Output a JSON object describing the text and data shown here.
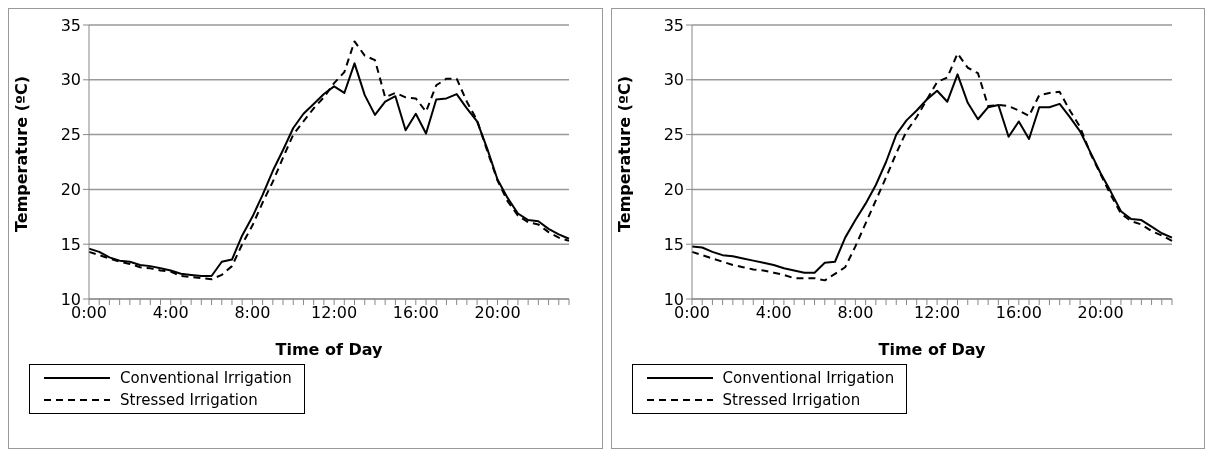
{
  "chart_data": [
    {
      "type": "line",
      "xlabel": "Time of Day",
      "ylabel": "Temperature (ºC)",
      "categories": [
        "0:00",
        null,
        null,
        null,
        null,
        null,
        null,
        null,
        "4:00",
        null,
        null,
        null,
        null,
        null,
        null,
        null,
        "8:00",
        null,
        null,
        null,
        null,
        null,
        null,
        null,
        "12:00",
        null,
        null,
        null,
        null,
        null,
        null,
        null,
        "16:00",
        null,
        null,
        null,
        null,
        null,
        null,
        null,
        "20:00",
        null,
        null,
        null,
        null,
        null,
        null,
        null
      ],
      "ylim": [
        10,
        35
      ],
      "yticks": [
        10,
        15,
        20,
        25,
        30,
        35
      ],
      "grid": "y",
      "legend": "bottom left",
      "series": [
        {
          "name": "Conventional Irrigation",
          "color": "#000000",
          "line_style": "solid",
          "values": [
            14.6,
            14.3,
            13.8,
            13.5,
            13.4,
            13.1,
            13.0,
            12.8,
            12.6,
            12.3,
            12.2,
            12.1,
            12.1,
            13.4,
            13.6,
            15.8,
            17.5,
            19.5,
            21.7,
            23.6,
            25.6,
            26.9,
            27.8,
            28.7,
            29.4,
            28.8,
            31.5,
            28.6,
            26.8,
            28.0,
            28.5,
            25.4,
            26.9,
            25.1,
            28.2,
            28.3,
            28.7,
            27.4,
            26.2,
            23.7,
            20.9,
            19.2,
            17.8,
            17.2,
            17.1,
            16.4,
            15.9,
            15.5
          ]
        },
        {
          "name": "Stressed Irrigation",
          "color": "#000000",
          "line_style": "dashed",
          "values": [
            14.3,
            14.0,
            13.7,
            13.4,
            13.2,
            12.9,
            12.8,
            12.6,
            12.5,
            12.1,
            12.0,
            11.9,
            11.8,
            12.2,
            13.0,
            15.0,
            16.7,
            18.8,
            20.7,
            22.9,
            25.0,
            26.2,
            27.4,
            28.4,
            29.7,
            30.7,
            33.5,
            32.2,
            31.8,
            28.4,
            28.8,
            28.4,
            28.3,
            27.1,
            29.5,
            30.1,
            30.1,
            28.0,
            26.3,
            23.5,
            20.8,
            18.9,
            17.6,
            17.0,
            16.8,
            16.1,
            15.6,
            15.3
          ]
        }
      ]
    },
    {
      "type": "line",
      "xlabel": "Time of Day",
      "ylabel": "Temperature (ºC)",
      "categories": [
        "0:00",
        null,
        null,
        null,
        null,
        null,
        null,
        null,
        "4:00",
        null,
        null,
        null,
        null,
        null,
        null,
        null,
        "8:00",
        null,
        null,
        null,
        null,
        null,
        null,
        null,
        "12:00",
        null,
        null,
        null,
        null,
        null,
        null,
        null,
        "16:00",
        null,
        null,
        null,
        null,
        null,
        null,
        null,
        "20:00",
        null,
        null,
        null,
        null,
        null,
        null,
        null
      ],
      "ylim": [
        10,
        35
      ],
      "yticks": [
        10,
        15,
        20,
        25,
        30,
        35
      ],
      "grid": "y",
      "legend": "bottom left",
      "series": [
        {
          "name": "Conventional Irrigation",
          "color": "#000000",
          "line_style": "solid",
          "values": [
            14.8,
            14.7,
            14.3,
            14.0,
            13.9,
            13.7,
            13.5,
            13.3,
            13.1,
            12.8,
            12.6,
            12.4,
            12.4,
            13.3,
            13.4,
            15.6,
            17.2,
            18.7,
            20.4,
            22.5,
            25.0,
            26.3,
            27.2,
            28.2,
            29.0,
            28.0,
            30.5,
            27.9,
            26.4,
            27.5,
            27.7,
            24.8,
            26.2,
            24.6,
            27.5,
            27.5,
            27.8,
            26.6,
            25.3,
            23.4,
            21.5,
            19.8,
            18.0,
            17.3,
            17.2,
            16.6,
            16.0,
            15.6
          ]
        },
        {
          "name": "Stressed Irrigation",
          "color": "#000000",
          "line_style": "dashed",
          "values": [
            14.3,
            14.0,
            13.7,
            13.4,
            13.1,
            12.9,
            12.7,
            12.6,
            12.4,
            12.2,
            11.9,
            11.9,
            11.9,
            11.7,
            12.3,
            12.9,
            14.8,
            16.9,
            19.0,
            21.1,
            23.3,
            25.3,
            26.6,
            28.2,
            29.8,
            30.2,
            32.4,
            31.1,
            30.6,
            27.6,
            27.7,
            27.6,
            27.2,
            26.7,
            28.6,
            28.8,
            28.9,
            27.2,
            25.7,
            23.3,
            21.4,
            19.5,
            17.8,
            17.1,
            16.8,
            16.2,
            15.8,
            15.3
          ]
        }
      ]
    }
  ]
}
